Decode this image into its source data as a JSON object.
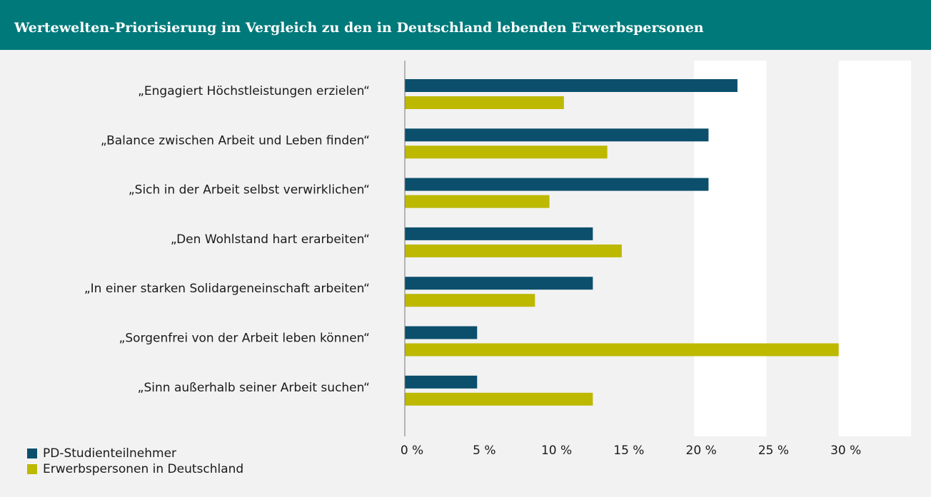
{
  "chart_data": {
    "type": "bar",
    "orientation": "horizontal",
    "title": "Wertewelten-Priorisierung im Vergleich zu den in Deutschland lebenden Erwerbspersonen",
    "categories": [
      "„Engagiert Höchstleistungen erzielen“",
      "„Balance zwischen Arbeit und Leben finden“",
      "„Sich in der Arbeit selbst verwirklichen“",
      "„Den Wohlstand hart erarbeiten“",
      "„In einer starken Solidargeneinschaft arbeiten“",
      "„Sorgenfrei von der Arbeit leben können“",
      "„Sinn außerhalb seiner Arbeit suchen“"
    ],
    "series": [
      {
        "name": "PD-Studienteilnehmer",
        "color": "#0b4f6c",
        "values": [
          23,
          21,
          21,
          13,
          13,
          5,
          5
        ]
      },
      {
        "name": "Erwerbspersonen in Deutschland",
        "color": "#bdb800",
        "values": [
          11,
          14,
          10,
          15,
          9,
          30,
          13
        ]
      }
    ],
    "xlim": [
      0,
      35
    ],
    "xticks": [
      {
        "value": 0,
        "label": "0 %"
      },
      {
        "value": 5,
        "label": "5 %"
      },
      {
        "value": 10,
        "label": "10 %"
      },
      {
        "value": 15,
        "label": "15 %"
      },
      {
        "value": 20,
        "label": "20 %"
      },
      {
        "value": 25,
        "label": "25 %"
      },
      {
        "value": 30,
        "label": "30 %"
      }
    ],
    "legend": "bottom-left"
  }
}
